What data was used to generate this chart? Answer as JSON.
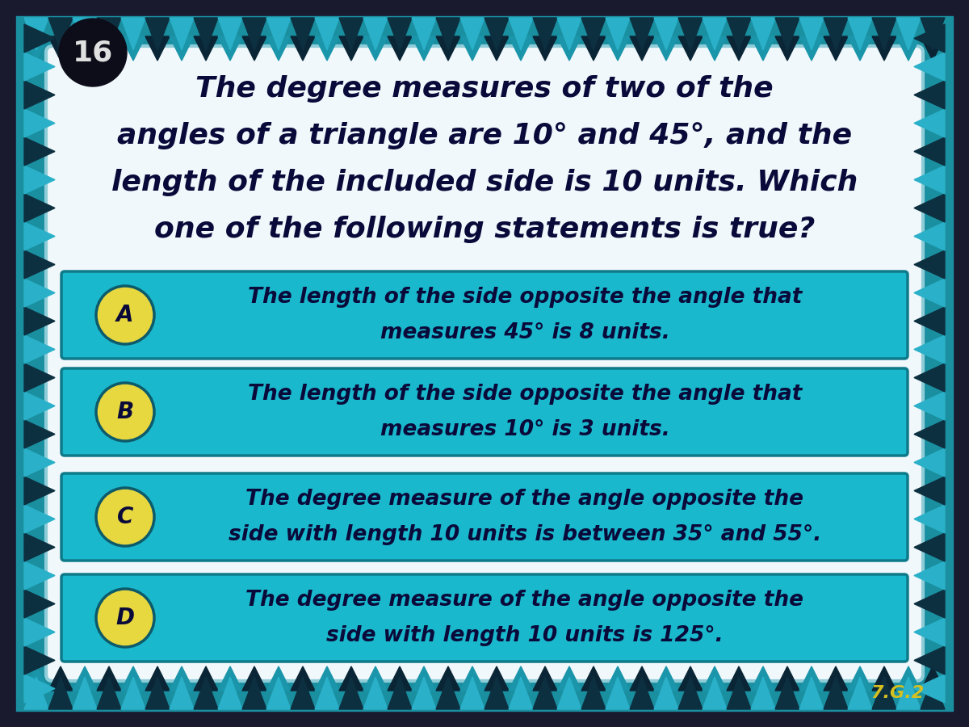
{
  "question_number": "16",
  "question_text_lines": [
    "The degree measures of two of the",
    "angles of a triangle are 10° and 45°, and the",
    "length of the included side is 10 units. Which",
    "one of the following statements is true?"
  ],
  "options": [
    {
      "letter": "A",
      "lines": [
        "The length of the side opposite the angle that",
        "measures 45° is 8 units."
      ]
    },
    {
      "letter": "B",
      "lines": [
        "The length of the side opposite the angle that",
        "measures 10° is 3 units."
      ]
    },
    {
      "letter": "C",
      "lines": [
        "The degree measure of the angle opposite the",
        "side with length 10 units is between 35° and 55°."
      ]
    },
    {
      "letter": "D",
      "lines": [
        "The degree measure of the angle opposite the",
        "side with length 10 units is 125°."
      ]
    }
  ],
  "standard": "7.G.2",
  "bg_outer": "#1a1a2e",
  "bg_border_teal": "#1a8fa0",
  "bg_border_dark": "#0d2a35",
  "bg_inner": "#f0f8fb",
  "option_box_color": "#1ab8cc",
  "option_box_border": "#0d7a8a",
  "option_text_color": "#0a0a3a",
  "question_text_color": "#0a0a3a",
  "circle_fill": "#e8d840",
  "circle_border": "#0d5a6a",
  "circle_text_color": "#0a0a3a",
  "number_circle_color": "#0d0d1a",
  "number_text_color": "#e0e0e0",
  "standard_color": "#d4c020"
}
